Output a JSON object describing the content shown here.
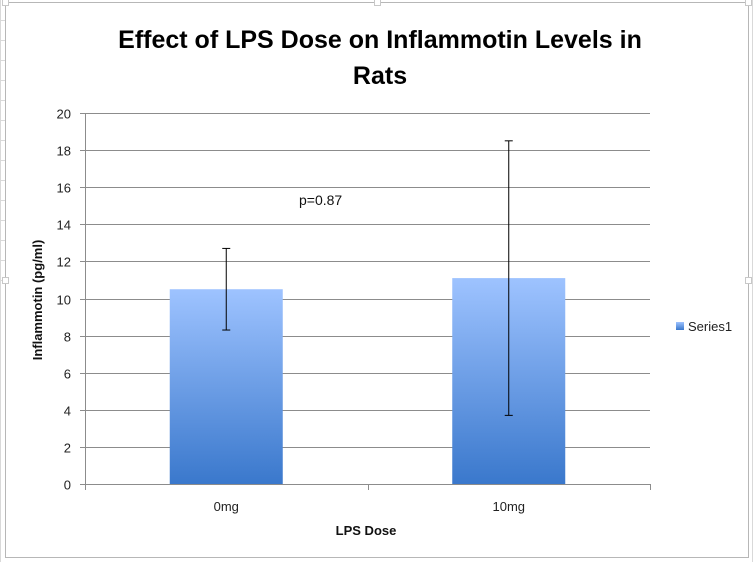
{
  "chart_data": {
    "type": "bar",
    "title_lines": [
      "Effect of LPS Dose on Inflammotin Levels in",
      "Rats"
    ],
    "categories": [
      "0mg",
      "10mg"
    ],
    "series": [
      {
        "name": "Series1",
        "values": [
          10.5,
          11.1
        ],
        "error_low": [
          8.3,
          3.7
        ],
        "error_high": [
          12.7,
          18.5
        ]
      }
    ],
    "xlabel": "LPS Dose",
    "ylabel": "Inflammotin (pg/ml)",
    "ylim": [
      0,
      20
    ],
    "yticks": [
      0,
      2,
      4,
      6,
      8,
      10,
      12,
      14,
      16,
      18,
      20
    ],
    "grid": true,
    "legend_position": "right",
    "annotation": "p=0.87",
    "colors": {
      "bar_top": "#9ec3ff",
      "bar_bottom": "#3a78cc",
      "grid": "#8c8c8c",
      "error": "#000000"
    }
  }
}
